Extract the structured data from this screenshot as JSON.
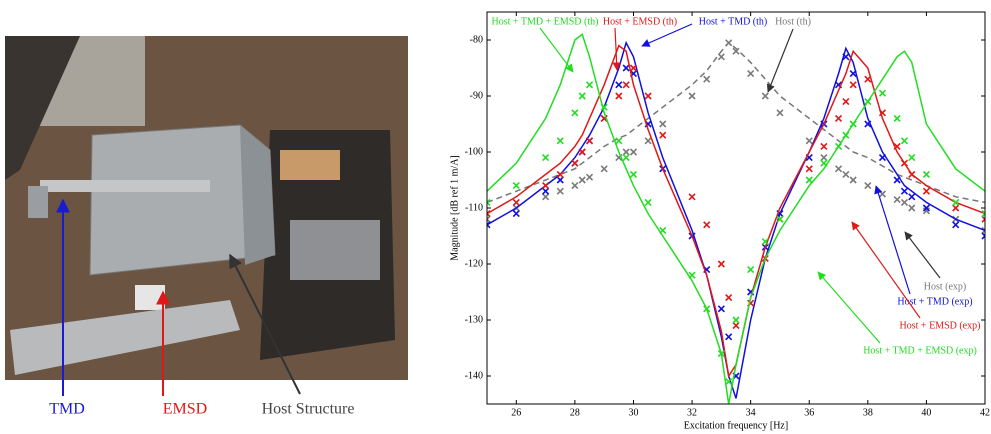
{
  "photo": {
    "labels": [
      {
        "text": "TMD",
        "color": "#1a1ad0"
      },
      {
        "text": "EMSD",
        "color": "#e01818"
      },
      {
        "text": "Host Structure",
        "color": "#444444"
      }
    ]
  },
  "chart_data": {
    "type": "line",
    "x_label": "Excitation frequency [Hz]",
    "y_label": "Magnitude [dB ref 1 m/A]",
    "xlim": [
      25,
      42
    ],
    "ylim": [
      -145,
      -75
    ],
    "xticks": [
      26,
      28,
      30,
      32,
      34,
      36,
      38,
      40,
      42
    ],
    "yticks": [
      -140,
      -130,
      -120,
      -110,
      -100,
      -90,
      -80
    ],
    "x": [
      25,
      26,
      27,
      27.5,
      28,
      28.25,
      28.5,
      29,
      29.5,
      29.75,
      30,
      30.5,
      31,
      32,
      32.5,
      33,
      33.25,
      33.5,
      34,
      34.5,
      35,
      36,
      36.5,
      37,
      37.25,
      37.5,
      38,
      38.5,
      39,
      39.25,
      39.5,
      40,
      41,
      42
    ],
    "series": [
      {
        "name": "Host (th)",
        "color": "#777777",
        "style": "dashed",
        "values": [
          -109,
          -107,
          -105,
          -104,
          -103,
          -102,
          -101,
          -99,
          -97.5,
          -97,
          -96,
          -94,
          -92,
          -88,
          -85.5,
          -82,
          -80.5,
          -81.5,
          -84,
          -87,
          -90,
          -94,
          -96,
          -98,
          -99,
          -100,
          -101,
          -102.5,
          -104,
          -104.5,
          -105,
          -106,
          -108,
          -109
        ]
      },
      {
        "name": "Host (exp)",
        "color": "#7a7a7a",
        "style": "marker",
        "values": [
          -112,
          -110,
          -108,
          -107,
          -106,
          -105,
          -104.5,
          -103,
          -101,
          -100,
          -100,
          -98,
          -95,
          -90,
          -87,
          -83,
          -80.5,
          -82,
          -86,
          -90,
          -93,
          -98,
          -101,
          -103,
          -104,
          -105,
          -106,
          -107.5,
          -108.5,
          -109,
          -110,
          -110.5,
          -112,
          -114
        ]
      },
      {
        "name": "Host + TMD (th)",
        "color": "#1010e0",
        "style": "solid",
        "values": [
          -113,
          -110,
          -106,
          -104,
          -101,
          -99,
          -97,
          -92,
          -85,
          -80.5,
          -83,
          -93,
          -101,
          -114,
          -122,
          -133,
          -140,
          -144,
          -130,
          -119,
          -111,
          -100,
          -94,
          -86,
          -81.5,
          -84,
          -94,
          -100,
          -104,
          -106,
          -107,
          -109,
          -112,
          -114
        ]
      },
      {
        "name": "Host + TMD (exp)",
        "color": "#1010e0",
        "style": "marker",
        "values": [
          -113,
          -111,
          -107,
          -105,
          -102,
          -100,
          -98,
          -94,
          -88,
          -85,
          -86,
          -95,
          -103,
          -115,
          -121,
          -128,
          -133,
          -140,
          -125,
          -117,
          -111,
          -101,
          -95,
          -88,
          -83,
          -86,
          -95,
          -101,
          -105,
          -107,
          -108,
          -110,
          -113,
          -115
        ]
      },
      {
        "name": "Host + EMSD (th)",
        "color": "#e01818",
        "style": "solid",
        "values": [
          -111,
          -108,
          -104,
          -102,
          -99,
          -97,
          -94,
          -88,
          -81,
          -82,
          -88,
          -96,
          -103,
          -115,
          -122,
          -132,
          -140,
          -138,
          -126,
          -117,
          -110,
          -100,
          -95,
          -89,
          -86,
          -82,
          -85,
          -94,
          -100,
          -102,
          -104,
          -106,
          -109,
          -111
        ]
      },
      {
        "name": "Host + EMSD (exp)",
        "color": "#e01818",
        "style": "marker",
        "values": [
          -111,
          -109,
          -106,
          -104,
          -102,
          -100,
          -98,
          -94,
          -90,
          -88,
          -85,
          -90,
          -97,
          -108,
          -113,
          -120,
          -126,
          -131,
          -127,
          -119,
          -112,
          -103,
          -99,
          -94,
          -91,
          -88,
          -87,
          -93,
          -99,
          -102,
          -104,
          -107,
          -110,
          -112
        ]
      },
      {
        "name": "Host + TMD + EMSD (th)",
        "color": "#22dd22",
        "style": "solid",
        "values": [
          -107,
          -102,
          -94,
          -88,
          -80,
          -79,
          -83,
          -93,
          -100,
          -103,
          -106,
          -111,
          -115,
          -123,
          -128,
          -136,
          -145,
          -138,
          -126,
          -119,
          -114,
          -106,
          -103,
          -99,
          -97,
          -95,
          -91,
          -87,
          -83,
          -82,
          -84,
          -95,
          -103,
          -107
        ]
      },
      {
        "name": "Host + TMD + EMSD (exp)",
        "color": "#22dd22",
        "style": "marker",
        "values": [
          -109,
          -106,
          -101,
          -98,
          -93,
          -90,
          -88,
          -92,
          -98,
          -101,
          -104,
          -109,
          -114,
          -122,
          -128,
          -136,
          -141,
          -130,
          -121,
          -116,
          -112,
          -105,
          -102,
          -99,
          -97,
          -95,
          -91,
          -89.5,
          -94,
          -98,
          -101,
          -104,
          -109,
          -111
        ]
      }
    ]
  }
}
